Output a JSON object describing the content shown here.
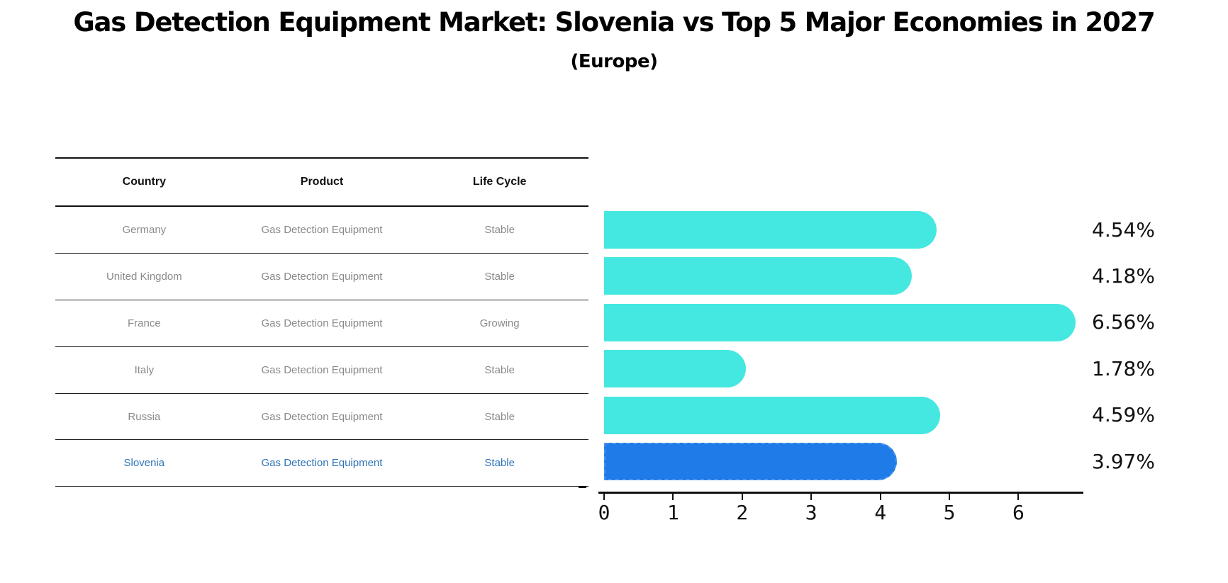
{
  "title": "Gas Detection Equipment Market: Slovenia vs Top 5 Major Economies in 2027",
  "subtitle": "(Europe)",
  "table": {
    "headers": [
      "Country",
      "Product",
      "Life Cycle"
    ],
    "rows": [
      {
        "country": "Germany",
        "product": "Gas Detection Equipment",
        "life_cycle": "Stable",
        "highlight": false
      },
      {
        "country": "United Kingdom",
        "product": "Gas Detection Equipment",
        "life_cycle": "Stable",
        "highlight": false
      },
      {
        "country": "France",
        "product": "Gas Detection Equipment",
        "life_cycle": "Growing",
        "highlight": false
      },
      {
        "country": "Italy",
        "product": "Gas Detection Equipment",
        "life_cycle": "Stable",
        "highlight": false
      },
      {
        "country": "Russia",
        "product": "Gas Detection Equipment",
        "life_cycle": "Stable",
        "highlight": false
      },
      {
        "country": "Slovenia",
        "product": "Gas Detection Equipment",
        "life_cycle": "Stable",
        "highlight": true
      }
    ]
  },
  "chart_data": {
    "type": "bar",
    "orientation": "horizontal",
    "title": "Gas Detection Equipment Market: Slovenia vs Top 5 Major Economies in 2027",
    "subtitle": "(Europe)",
    "categories": [
      "Germany",
      "United Kingdom",
      "France",
      "Italy",
      "Russia",
      "Slovenia"
    ],
    "values": [
      4.54,
      4.18,
      6.56,
      1.78,
      4.59,
      3.97
    ],
    "value_labels": [
      "4.54%",
      "4.18%",
      "6.56%",
      "1.78%",
      "4.59%",
      "3.97%"
    ],
    "x_ticks": [
      0,
      1,
      2,
      3,
      4,
      5,
      6
    ],
    "xlim": [
      0,
      6.94
    ],
    "grid": false,
    "legend": "none",
    "highlight_index": 5,
    "colors": {
      "bar": "#45e8e0",
      "highlight_bar": "#1e7be8",
      "highlight_bar_border": "#4d94ee",
      "highlight_text": "#2e74b8",
      "row_text": "#8a8a8a",
      "header_text": "#111111",
      "axis": "#111111",
      "value_label_text": "#111111"
    }
  }
}
